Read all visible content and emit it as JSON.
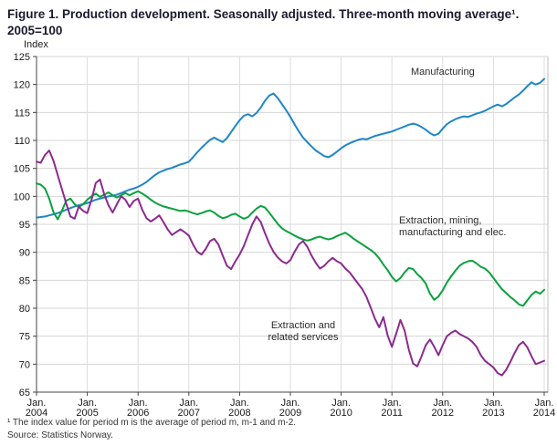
{
  "title": "Figure 1. Production development. Seasonally adjusted. Three-month moving average¹. 2005=100",
  "footnote": "¹ The index value for period m is the average of period m, m-1 and m-2.",
  "source": "Source: Statistics Norway.",
  "chart_data": {
    "type": "line",
    "title": "Production development. Seasonally adjusted. Three-month moving average. 2005=100",
    "ylabel": "Index",
    "xlabel": "",
    "ylim": [
      65,
      125
    ],
    "grid": true,
    "legend_position": "inline-annotations",
    "y_ticks": [
      65,
      70,
      75,
      80,
      85,
      90,
      95,
      100,
      105,
      110,
      115,
      120,
      125
    ],
    "x_tick_months": [
      0,
      12,
      24,
      36,
      48,
      60,
      72,
      84,
      96,
      108,
      120
    ],
    "x_tick_labels": [
      {
        "month": "Jan.",
        "year": "2004"
      },
      {
        "month": "Jan.",
        "year": "2005"
      },
      {
        "month": "Jan.",
        "year": "2006"
      },
      {
        "month": "Jan.",
        "year": "2007"
      },
      {
        "month": "Jan.",
        "year": "2008"
      },
      {
        "month": "Jan.",
        "year": "2009"
      },
      {
        "month": "Jan.",
        "year": "2010"
      },
      {
        "month": "Jan.",
        "year": "2011"
      },
      {
        "month": "Jan.",
        "year": "2012"
      },
      {
        "month": "Jan.",
        "year": "2013"
      },
      {
        "month": "Jan.",
        "year": "2014"
      }
    ],
    "x_range_note": "monthly values, Jan 2004 to Jan 2014",
    "series": [
      {
        "name": "Manufacturing",
        "color": "#1f86c8",
        "label_lines": [
          "Manufacturing"
        ],
        "values": [
          96.2,
          96.3,
          96.4,
          96.6,
          96.8,
          97.0,
          97.3,
          97.6,
          97.9,
          98.2,
          98.4,
          98.6,
          98.8,
          99.1,
          99.4,
          99.6,
          99.8,
          100.0,
          100.1,
          100.3,
          100.6,
          100.9,
          101.2,
          101.4,
          101.7,
          102.1,
          102.6,
          103.2,
          103.8,
          104.3,
          104.6,
          104.9,
          105.1,
          105.4,
          105.7,
          105.9,
          106.2,
          107.0,
          107.9,
          108.7,
          109.4,
          110.1,
          110.5,
          110.1,
          109.7,
          110.4,
          111.5,
          112.6,
          113.6,
          114.4,
          114.7,
          114.3,
          114.9,
          115.9,
          117.1,
          118.0,
          118.4,
          117.6,
          116.5,
          115.4,
          114.2,
          112.9,
          111.6,
          110.5,
          109.7,
          108.9,
          108.2,
          107.7,
          107.2,
          107.0,
          107.4,
          108.0,
          108.6,
          109.1,
          109.5,
          109.8,
          110.1,
          110.3,
          110.2,
          110.5,
          110.8,
          111.0,
          111.2,
          111.4,
          111.6,
          111.9,
          112.2,
          112.5,
          112.8,
          113.0,
          112.8,
          112.4,
          111.9,
          111.3,
          110.9,
          111.2,
          112.1,
          112.9,
          113.4,
          113.8,
          114.1,
          114.3,
          114.2,
          114.5,
          114.8,
          115.0,
          115.3,
          115.7,
          116.1,
          116.4,
          116.1,
          116.5,
          117.1,
          117.7,
          118.2,
          118.9,
          119.7,
          120.4,
          120.0,
          120.3,
          121.0
        ]
      },
      {
        "name": "Extraction, mining, manufacturing and elec.",
        "color": "#0aa13d",
        "label_lines": [
          "Extraction, mining,",
          "manufacturing and elec."
        ],
        "values": [
          102.3,
          102.1,
          101.4,
          99.6,
          97.2,
          95.9,
          97.4,
          99.2,
          99.6,
          98.6,
          98.1,
          98.6,
          99.4,
          100.0,
          100.5,
          99.9,
          100.3,
          100.7,
          100.2,
          99.8,
          100.2,
          100.6,
          100.2,
          100.6,
          100.9,
          100.5,
          100.0,
          99.4,
          98.9,
          98.5,
          98.2,
          98.0,
          97.8,
          97.6,
          97.4,
          97.5,
          97.3,
          97.0,
          96.8,
          97.0,
          97.3,
          97.5,
          97.1,
          96.5,
          96.1,
          96.3,
          96.7,
          96.9,
          96.4,
          96.0,
          96.3,
          97.1,
          97.8,
          98.3,
          98.0,
          97.1,
          96.1,
          95.1,
          94.3,
          93.8,
          93.4,
          93.0,
          92.6,
          92.3,
          92.1,
          92.3,
          92.6,
          92.8,
          92.5,
          92.3,
          92.5,
          92.9,
          93.2,
          93.5,
          93.0,
          92.4,
          91.9,
          91.4,
          90.9,
          90.4,
          89.8,
          88.9,
          87.8,
          86.8,
          85.6,
          84.8,
          85.4,
          86.4,
          87.2,
          87.0,
          86.1,
          85.4,
          84.4,
          82.6,
          81.5,
          82.1,
          83.2,
          84.6,
          85.7,
          86.7,
          87.6,
          88.1,
          88.4,
          88.5,
          88.0,
          87.4,
          87.1,
          86.4,
          85.4,
          84.4,
          83.4,
          82.7,
          82.0,
          81.4,
          80.7,
          80.4,
          81.4,
          82.4,
          83.0,
          82.6,
          83.3
        ]
      },
      {
        "name": "Extraction and related services",
        "color": "#8c2a8f",
        "label_lines": [
          "Extraction and",
          "related services"
        ],
        "values": [
          106.2,
          106.0,
          107.4,
          108.2,
          106.4,
          103.8,
          101.3,
          98.8,
          96.4,
          96.0,
          98.2,
          97.4,
          97.0,
          99.4,
          102.4,
          103.0,
          100.4,
          98.4,
          97.1,
          98.6,
          100.0,
          99.4,
          98.1,
          99.2,
          99.6,
          97.6,
          96.1,
          95.5,
          96.0,
          96.6,
          95.4,
          94.1,
          93.1,
          93.6,
          94.1,
          93.6,
          93.0,
          91.4,
          90.1,
          89.6,
          90.6,
          92.0,
          92.4,
          91.4,
          89.4,
          87.6,
          87.0,
          88.4,
          89.6,
          91.1,
          93.1,
          95.0,
          96.4,
          95.4,
          93.4,
          91.6,
          90.1,
          89.1,
          88.4,
          88.0,
          88.6,
          90.1,
          91.4,
          92.0,
          91.0,
          89.4,
          88.1,
          87.1,
          87.6,
          88.4,
          89.0,
          88.4,
          88.0,
          87.1,
          86.4,
          85.4,
          84.4,
          83.4,
          82.0,
          80.1,
          78.1,
          76.6,
          78.4,
          75.1,
          73.1,
          75.4,
          77.9,
          76.0,
          72.6,
          70.1,
          69.6,
          71.4,
          73.4,
          74.4,
          73.1,
          71.6,
          73.4,
          75.0,
          75.6,
          76.0,
          75.4,
          75.0,
          74.6,
          74.0,
          73.1,
          71.6,
          70.6,
          70.0,
          69.4,
          68.4,
          68.0,
          69.0,
          70.4,
          72.0,
          73.4,
          74.0,
          73.0,
          71.4,
          70.0,
          70.3,
          70.6
        ]
      }
    ],
    "colors": {
      "grid": "#d4d4d4",
      "axis": "#444444",
      "tick_text": "#1a1a1a",
      "annotation_text": "#2b2b2b"
    }
  }
}
